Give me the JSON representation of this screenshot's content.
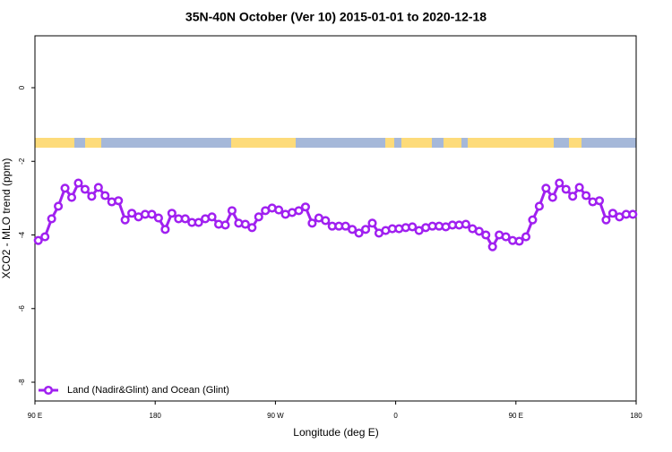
{
  "chart_data": {
    "type": "line",
    "title": "35N-40N October (Ver 10)   2015-01-01 to 2020-12-18",
    "x_label": "Longitude (deg E)",
    "y_label": "XCO2 - MLO trend (ppm)",
    "xlim": [
      90,
      540
    ],
    "ylim": [
      -8.51,
      1.41
    ],
    "xticks": [
      {
        "value": 90,
        "label": "90 E"
      },
      180,
      {
        "value": 270,
        "label": "90 W"
      },
      {
        "value": 360,
        "label": "0"
      },
      {
        "value": 450,
        "label": "90 E"
      },
      {
        "value": 540,
        "label": "180"
      }
    ],
    "yticks": [
      0,
      -2,
      -4,
      -6,
      -8
    ],
    "legend_position": "bottom-left",
    "x": [
      92.5,
      97.5,
      102.5,
      107.5,
      112.5,
      117.5,
      122.5,
      127.5,
      132.5,
      137.5,
      142.5,
      147.5,
      152.5,
      157.5,
      162.5,
      167.5,
      172.5,
      177.5,
      182.5,
      187.5,
      192.5,
      197.5,
      202.5,
      207.5,
      212.5,
      217.5,
      222.5,
      227.5,
      232.5,
      237.5,
      242.5,
      247.5,
      252.5,
      257.5,
      262.5,
      267.5,
      272.5,
      277.5,
      282.5,
      287.5,
      292.5,
      297.5,
      302.5,
      307.5,
      312.5,
      317.5,
      322.5,
      327.5,
      332.5,
      337.5,
      342.5,
      347.5,
      352.5,
      357.5,
      362.5,
      367.5,
      372.5,
      377.5,
      382.5,
      387.5,
      392.5,
      397.5,
      402.5,
      407.5,
      412.5,
      417.5,
      422.5,
      427.5,
      432.5,
      437.5,
      442.5,
      447.5,
      452.5,
      457.5,
      462.5,
      467.5,
      472.5,
      477.5,
      482.5,
      487.5,
      492.5,
      497.5,
      502.5,
      507.5,
      512.5,
      517.5,
      522.5,
      527.5,
      532.5,
      537.5
    ],
    "series": [
      {
        "name": "Land (Nadir&Glint) and Ocean (Glint)",
        "color": "#a020f0",
        "values": [
          -4.15,
          -4.05,
          -3.56,
          -3.22,
          -2.73,
          -2.98,
          -2.59,
          -2.76,
          -2.95,
          -2.71,
          -2.93,
          -3.1,
          -3.07,
          -3.59,
          -3.41,
          -3.51,
          -3.44,
          -3.44,
          -3.54,
          -3.85,
          -3.41,
          -3.56,
          -3.56,
          -3.66,
          -3.66,
          -3.56,
          -3.51,
          -3.71,
          -3.73,
          -3.34,
          -3.68,
          -3.71,
          -3.8,
          -3.51,
          -3.34,
          -3.27,
          -3.32,
          -3.44,
          -3.39,
          -3.34,
          -3.24,
          -3.68,
          -3.54,
          -3.61,
          -3.76,
          -3.76,
          -3.76,
          -3.85,
          -3.95,
          -3.85,
          -3.68,
          -3.95,
          -3.88,
          -3.83,
          -3.83,
          -3.8,
          -3.78,
          -3.88,
          -3.8,
          -3.76,
          -3.76,
          -3.78,
          -3.73,
          -3.73,
          -3.71,
          -3.83,
          -3.9,
          -4.0,
          -4.32,
          -4.0,
          -4.05,
          -4.15,
          -4.17,
          -4.05,
          -3.59,
          -3.22,
          -2.73,
          -2.98,
          -2.59,
          -2.76,
          -2.95,
          -2.71,
          -2.93,
          -3.1,
          -3.07,
          -3.59,
          -3.41,
          -3.51,
          -3.44,
          -3.44
        ]
      }
    ]
  }
}
